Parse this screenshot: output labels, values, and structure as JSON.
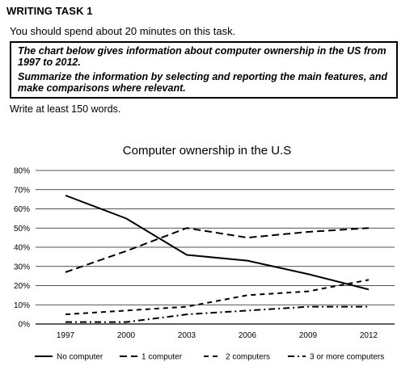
{
  "task": {
    "header": "WRITING TASK 1",
    "instruction": "You should spend about 20 minutes on this task.",
    "prompt_line1": "The chart below gives information about computer ownership in the US from 1997 to 2012.",
    "prompt_line2": "Summarize the information by selecting and reporting the main features, and make comparisons where relevant.",
    "word_limit": "Write at least 150 words."
  },
  "chart_data": {
    "type": "line",
    "title": "Computer ownership in the U.S",
    "xlabel": "",
    "ylabel": "",
    "x": [
      "1997",
      "2000",
      "2003",
      "2006",
      "2009",
      "2012"
    ],
    "ylim": [
      0,
      80
    ],
    "y_ticks": [
      "0%",
      "10%",
      "20%",
      "30%",
      "40%",
      "50%",
      "60%",
      "70%",
      "80%"
    ],
    "grid": true,
    "legend_position": "bottom",
    "series": [
      {
        "name": "No computer",
        "values": [
          67,
          55,
          36,
          33,
          26,
          18
        ],
        "dash": "solid"
      },
      {
        "name": "1 computer",
        "values": [
          27,
          38,
          50,
          45,
          48,
          50
        ],
        "dash": "dashed"
      },
      {
        "name": "2 computers",
        "values": [
          5,
          7,
          9,
          15,
          17,
          23
        ],
        "dash": "short-dash"
      },
      {
        "name": "3 or more computers",
        "values": [
          1,
          1,
          5,
          7,
          9,
          9
        ],
        "dash": "dash-dot"
      }
    ]
  }
}
